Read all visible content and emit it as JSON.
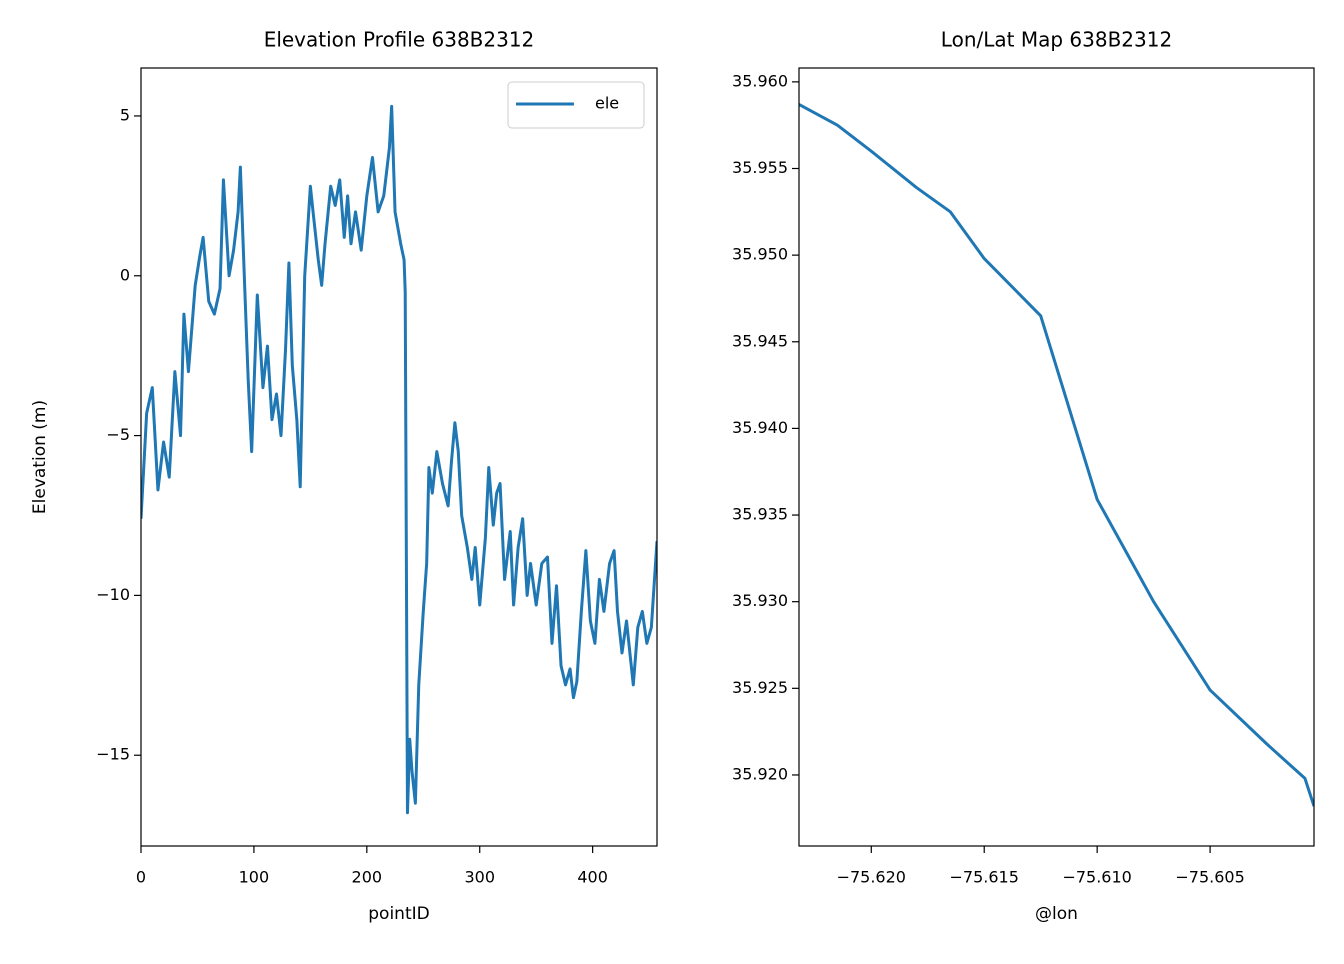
{
  "chart_data": [
    {
      "type": "line",
      "title": "Elevation Profile 638B2312",
      "xlabel": "pointID",
      "ylabel": "Elevation (m)",
      "x": [
        0,
        5,
        10,
        15,
        20,
        25,
        30,
        35,
        38,
        42,
        48,
        52,
        55,
        60,
        65,
        70,
        73,
        78,
        82,
        86,
        88,
        92,
        95,
        98,
        103,
        108,
        112,
        116,
        120,
        124,
        128,
        131,
        134,
        138,
        141,
        145,
        150,
        153,
        157,
        160,
        163,
        168,
        172,
        176,
        180,
        183,
        186,
        190,
        195,
        200,
        205,
        210,
        215,
        220,
        222,
        225,
        230,
        233,
        234,
        236,
        238,
        240,
        243,
        246,
        250,
        253,
        255,
        258,
        262,
        267,
        272,
        275,
        278,
        281,
        284,
        289,
        293,
        296,
        300,
        305,
        308,
        312,
        315,
        318,
        322,
        327,
        330,
        334,
        338,
        342,
        345,
        350,
        355,
        360,
        364,
        368,
        372,
        376,
        380,
        383,
        386,
        390,
        394,
        398,
        402,
        406,
        410,
        415,
        419,
        422,
        426,
        430,
        436,
        440,
        444,
        448,
        452,
        457
      ],
      "series": [
        {
          "name": "ele",
          "color": "#1f77b4",
          "values": [
            -7.6,
            -4.3,
            -3.5,
            -6.7,
            -5.2,
            -6.3,
            -3.0,
            -5.0,
            -1.2,
            -3.0,
            -0.3,
            0.6,
            1.2,
            -0.8,
            -1.2,
            -0.4,
            3.0,
            0.0,
            0.8,
            2.0,
            3.4,
            -0.5,
            -3.3,
            -5.5,
            -0.6,
            -3.5,
            -2.2,
            -4.5,
            -3.7,
            -5.0,
            -2.3,
            0.4,
            -2.8,
            -4.5,
            -6.6,
            0.0,
            2.8,
            1.8,
            0.5,
            -0.3,
            1.0,
            2.8,
            2.2,
            3.0,
            1.2,
            2.5,
            1.0,
            2.0,
            0.8,
            2.5,
            3.7,
            2.0,
            2.5,
            4.0,
            5.3,
            2.0,
            1.0,
            0.5,
            -0.5,
            -16.8,
            -14.5,
            -15.5,
            -16.5,
            -12.8,
            -10.5,
            -9.0,
            -6.0,
            -6.8,
            -5.5,
            -6.5,
            -7.2,
            -5.8,
            -4.6,
            -5.5,
            -7.5,
            -8.5,
            -9.5,
            -8.5,
            -10.3,
            -8.2,
            -6.0,
            -7.8,
            -6.8,
            -6.5,
            -9.5,
            -8.0,
            -10.3,
            -8.5,
            -7.6,
            -10.0,
            -9.0,
            -10.3,
            -9.0,
            -8.8,
            -11.5,
            -9.7,
            -12.2,
            -12.8,
            -12.3,
            -13.2,
            -12.7,
            -10.5,
            -8.6,
            -10.8,
            -11.5,
            -9.5,
            -10.5,
            -9.0,
            -8.6,
            -10.5,
            -11.8,
            -10.8,
            -12.8,
            -11.0,
            -10.5,
            -11.5,
            -11.0,
            -8.3
          ]
        }
      ],
      "xlim": [
        0,
        457
      ],
      "ylim": [
        -17.84,
        6.5
      ],
      "xticks": [
        0,
        100,
        200,
        300,
        400
      ],
      "yticks": [
        {
          "value": -15,
          "label": "−15"
        },
        {
          "value": -10,
          "label": "−10"
        },
        {
          "value": -5,
          "label": "−5"
        },
        0,
        5
      ],
      "legend": "upper right"
    },
    {
      "type": "line",
      "title": "Lon/Lat Map 638B2312",
      "xlabel": "@lon",
      "x": [
        -75.6232,
        -75.6215,
        -75.62,
        -75.618,
        -75.6165,
        -75.615,
        -75.6125,
        -75.61,
        -75.6075,
        -75.605,
        -75.6025,
        -75.6008,
        -75.6004
      ],
      "series": [
        {
          "color": "#1f77b4",
          "values": [
            35.9587,
            35.9575,
            35.956,
            35.9539,
            35.9525,
            35.9498,
            35.9465,
            35.9359,
            35.93,
            35.9249,
            35.9218,
            35.9198,
            35.9182
          ]
        }
      ],
      "xlim": [
        -75.6232,
        -75.6004
      ],
      "ylim": [
        35.9159,
        35.9608
      ],
      "xticks": [
        {
          "value": -75.62,
          "label": "−75.620"
        },
        {
          "value": -75.615,
          "label": "−75.615"
        },
        {
          "value": -75.61,
          "label": "−75.610"
        },
        {
          "value": -75.605,
          "label": "−75.605"
        }
      ],
      "yticks": [
        {
          "value": 35.92,
          "label": "35.920"
        },
        35.925,
        {
          "value": 35.93,
          "label": "35.930"
        },
        35.935,
        {
          "value": 35.94,
          "label": "35.940"
        },
        35.945,
        {
          "value": 35.95,
          "label": "35.950"
        },
        35.955,
        {
          "value": 35.96,
          "label": "35.960"
        }
      ]
    }
  ]
}
